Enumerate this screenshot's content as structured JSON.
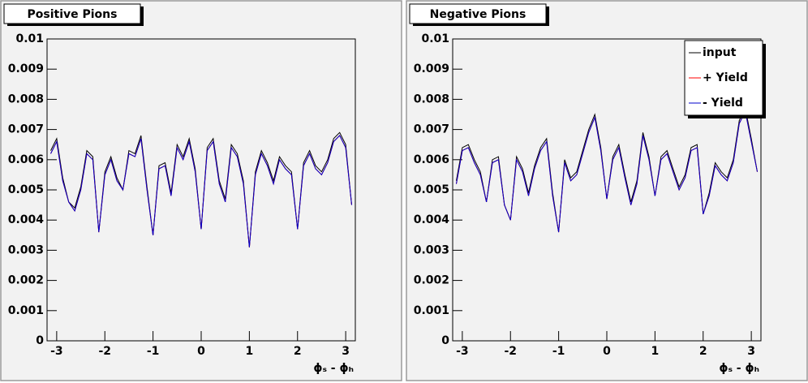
{
  "chart_data": [
    {
      "type": "line",
      "title": "Positive Pions",
      "x_label": "ϕₛ - ϕₕ",
      "x": [
        -3.125,
        -3.0,
        -2.875,
        -2.75,
        -2.625,
        -2.5,
        -2.375,
        -2.25,
        -2.125,
        -2.0,
        -1.875,
        -1.75,
        -1.625,
        -1.5,
        -1.375,
        -1.25,
        -1.125,
        -1.0,
        -0.875,
        -0.75,
        -0.625,
        -0.5,
        -0.375,
        -0.25,
        -0.125,
        0,
        0.125,
        0.25,
        0.375,
        0.5,
        0.625,
        0.75,
        0.875,
        1.0,
        1.125,
        1.25,
        1.375,
        1.5,
        1.625,
        1.75,
        1.875,
        2.0,
        2.125,
        2.25,
        2.375,
        2.5,
        2.625,
        2.75,
        2.875,
        3.0,
        3.125
      ],
      "series": [
        {
          "color": "#000000",
          "values": [
            0.0063,
            0.0067,
            0.0054,
            0.0046,
            0.0044,
            0.0051,
            0.0063,
            0.0061,
            0.0036,
            0.0056,
            0.0061,
            0.0054,
            0.005,
            0.0063,
            0.0062,
            0.0068,
            0.0051,
            0.0035,
            0.0058,
            0.0059,
            0.0049,
            0.0065,
            0.0061,
            0.0067,
            0.0057,
            0.0037,
            0.0064,
            0.0067,
            0.0053,
            0.0047,
            0.0065,
            0.0062,
            0.0053,
            0.0031,
            0.0056,
            0.0063,
            0.0059,
            0.0053,
            0.0061,
            0.0058,
            0.0056,
            0.0037,
            0.0059,
            0.0063,
            0.0058,
            0.0056,
            0.006,
            0.0067,
            0.0069,
            0.0065,
            0.0045
          ]
        },
        {
          "color": "#ff0000",
          "values": [
            0.0062,
            0.0066,
            0.0053,
            0.0046,
            0.0043,
            0.005,
            0.0062,
            0.006,
            0.0036,
            0.0055,
            0.006,
            0.0053,
            0.005,
            0.0062,
            0.0061,
            0.0067,
            0.005,
            0.0035,
            0.0057,
            0.0058,
            0.0048,
            0.0064,
            0.006,
            0.0066,
            0.0056,
            0.0037,
            0.0063,
            0.0066,
            0.0052,
            0.0046,
            0.0064,
            0.0061,
            0.0052,
            0.0031,
            0.0055,
            0.0062,
            0.0058,
            0.0052,
            0.006,
            0.0057,
            0.0055,
            0.0037,
            0.0058,
            0.0062,
            0.0057,
            0.0055,
            0.0059,
            0.0066,
            0.0068,
            0.0064,
            0.0045
          ]
        },
        {
          "color": "#0000cc",
          "values": [
            0.0062,
            0.0066,
            0.0053,
            0.0046,
            0.0043,
            0.005,
            0.0062,
            0.006,
            0.0036,
            0.0055,
            0.006,
            0.0053,
            0.005,
            0.0062,
            0.0061,
            0.0067,
            0.005,
            0.0035,
            0.0057,
            0.0058,
            0.0048,
            0.0064,
            0.006,
            0.0066,
            0.0056,
            0.0037,
            0.0063,
            0.0066,
            0.0052,
            0.0046,
            0.0064,
            0.0061,
            0.0052,
            0.0031,
            0.0055,
            0.0062,
            0.0058,
            0.0052,
            0.006,
            0.0057,
            0.0055,
            0.0037,
            0.0058,
            0.0062,
            0.0057,
            0.0055,
            0.0059,
            0.0066,
            0.0068,
            0.0064,
            0.0045
          ]
        }
      ],
      "xlim": [
        -3.2,
        3.2
      ],
      "xticks": [
        -3,
        -2,
        -1,
        0,
        1,
        2,
        3
      ],
      "ylim": [
        0,
        0.01
      ],
      "yticks": [
        0,
        0.001,
        0.002,
        0.003,
        0.004,
        0.005,
        0.006,
        0.007,
        0.008,
        0.009,
        0.01
      ]
    },
    {
      "type": "line",
      "title": "Negative Pions",
      "x_label": "ϕₛ - ϕₕ",
      "legend": "top-right",
      "x": [
        -3.125,
        -3.0,
        -2.875,
        -2.75,
        -2.625,
        -2.5,
        -2.375,
        -2.25,
        -2.125,
        -2.0,
        -1.875,
        -1.75,
        -1.625,
        -1.5,
        -1.375,
        -1.25,
        -1.125,
        -1.0,
        -0.875,
        -0.75,
        -0.625,
        -0.5,
        -0.375,
        -0.25,
        -0.125,
        0,
        0.125,
        0.25,
        0.375,
        0.5,
        0.625,
        0.75,
        0.875,
        1.0,
        1.125,
        1.25,
        1.375,
        1.5,
        1.625,
        1.75,
        1.875,
        2.0,
        2.125,
        2.25,
        2.375,
        2.5,
        2.625,
        2.75,
        2.875,
        3.0,
        3.125
      ],
      "series": [
        {
          "name": "input",
          "color": "#000000",
          "values": [
            0.0053,
            0.0064,
            0.0065,
            0.006,
            0.0056,
            0.0046,
            0.006,
            0.0061,
            0.0045,
            0.004,
            0.0061,
            0.0057,
            0.0049,
            0.0058,
            0.0064,
            0.0067,
            0.0049,
            0.0036,
            0.006,
            0.0054,
            0.0056,
            0.0063,
            0.007,
            0.0075,
            0.0064,
            0.0047,
            0.0061,
            0.0065,
            0.0055,
            0.0046,
            0.0053,
            0.0069,
            0.0061,
            0.0048,
            0.0061,
            0.0063,
            0.0057,
            0.0051,
            0.0055,
            0.0064,
            0.0065,
            0.0042,
            0.0049,
            0.0059,
            0.0056,
            0.0054,
            0.006,
            0.0073,
            0.0077,
            0.0067,
            0.0056
          ]
        },
        {
          "name": "+ Yield",
          "color": "#ff0000",
          "values": [
            0.0052,
            0.0063,
            0.0064,
            0.0059,
            0.0055,
            0.0046,
            0.0059,
            0.006,
            0.0045,
            0.004,
            0.006,
            0.0056,
            0.0048,
            0.0057,
            0.0063,
            0.0066,
            0.0048,
            0.0036,
            0.0059,
            0.0053,
            0.0055,
            0.0062,
            0.0069,
            0.0074,
            0.0063,
            0.0047,
            0.006,
            0.0064,
            0.0054,
            0.0045,
            0.0052,
            0.0068,
            0.006,
            0.0048,
            0.006,
            0.0062,
            0.0056,
            0.005,
            0.0054,
            0.0063,
            0.0064,
            0.0042,
            0.0048,
            0.0058,
            0.0055,
            0.0053,
            0.0059,
            0.0072,
            0.0076,
            0.0066,
            0.0056
          ]
        },
        {
          "name": "- Yield",
          "color": "#0000cc",
          "values": [
            0.0052,
            0.0063,
            0.0064,
            0.0059,
            0.0055,
            0.0046,
            0.0059,
            0.006,
            0.0045,
            0.004,
            0.006,
            0.0056,
            0.0048,
            0.0057,
            0.0063,
            0.0066,
            0.0048,
            0.0036,
            0.0059,
            0.0053,
            0.0055,
            0.0062,
            0.0069,
            0.0074,
            0.0063,
            0.0047,
            0.006,
            0.0064,
            0.0054,
            0.0045,
            0.0052,
            0.0068,
            0.006,
            0.0048,
            0.006,
            0.0062,
            0.0056,
            0.005,
            0.0054,
            0.0063,
            0.0064,
            0.0042,
            0.0048,
            0.0058,
            0.0055,
            0.0053,
            0.0059,
            0.0072,
            0.0076,
            0.0066,
            0.0056
          ]
        }
      ],
      "xlim": [
        -3.2,
        3.2
      ],
      "xticks": [
        -3,
        -2,
        -1,
        0,
        1,
        2,
        3
      ],
      "ylim": [
        0,
        0.01
      ],
      "yticks": [
        0,
        0.001,
        0.002,
        0.003,
        0.004,
        0.005,
        0.006,
        0.007,
        0.008,
        0.009,
        0.01
      ]
    }
  ]
}
